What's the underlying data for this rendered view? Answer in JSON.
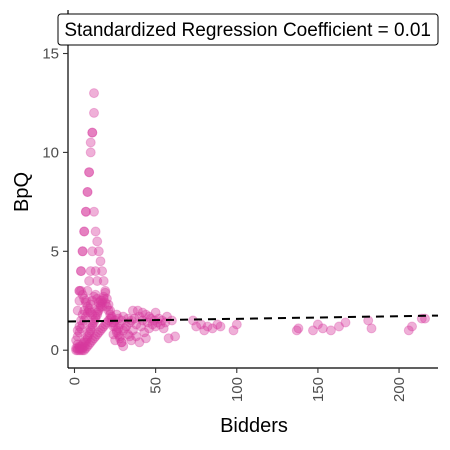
{
  "chart_data": {
    "type": "scatter",
    "title": "Standardized Regression Coefficient = 0.01",
    "xlabel": "Bidders",
    "ylabel": "BpQ",
    "xlim": [
      -4,
      224
    ],
    "ylim": [
      -0.9,
      17.2
    ],
    "x_ticks": [
      0,
      50,
      100,
      150,
      200
    ],
    "y_ticks": [
      0,
      5,
      10,
      15
    ],
    "grid": false,
    "legend": "none",
    "point_color": "#d63a9e",
    "point_opacity": 0.4,
    "trend_line": {
      "style": "dashed",
      "color": "#000000",
      "x": [
        -4,
        224
      ],
      "y": [
        1.45,
        1.75
      ]
    },
    "points": [
      [
        12,
        13
      ],
      [
        12,
        12
      ],
      [
        11,
        11
      ],
      [
        11,
        11
      ],
      [
        10,
        10.5
      ],
      [
        10,
        10
      ],
      [
        9,
        9
      ],
      [
        9,
        9
      ],
      [
        8,
        8
      ],
      [
        8,
        8
      ],
      [
        7,
        7
      ],
      [
        7,
        7
      ],
      [
        6,
        6
      ],
      [
        6,
        6
      ],
      [
        5,
        5
      ],
      [
        5,
        5
      ],
      [
        4,
        4
      ],
      [
        4,
        4
      ],
      [
        3,
        3
      ],
      [
        3,
        3
      ],
      [
        12,
        7
      ],
      [
        13,
        6
      ],
      [
        14,
        5.5
      ],
      [
        15,
        5
      ],
      [
        16,
        4.5
      ],
      [
        17,
        4
      ],
      [
        18,
        3.5
      ],
      [
        19,
        3
      ],
      [
        13,
        4
      ],
      [
        14,
        3.5
      ],
      [
        11,
        5
      ],
      [
        10,
        4
      ],
      [
        9,
        3.5
      ],
      [
        8,
        3
      ],
      [
        7,
        2.5
      ],
      [
        6,
        2
      ],
      [
        5,
        1.8
      ],
      [
        4,
        1.5
      ],
      [
        3,
        1.2
      ],
      [
        2,
        1
      ],
      [
        1,
        0.5
      ],
      [
        2,
        0.3
      ],
      [
        3,
        0.2
      ],
      [
        4,
        0.1
      ],
      [
        5,
        0
      ],
      [
        6,
        0.2
      ],
      [
        7,
        0.4
      ],
      [
        8,
        0.6
      ],
      [
        9,
        0.8
      ],
      [
        10,
        1
      ],
      [
        11,
        1.2
      ],
      [
        12,
        1.4
      ],
      [
        13,
        1.6
      ],
      [
        14,
        1.8
      ],
      [
        15,
        2
      ],
      [
        16,
        2.2
      ],
      [
        17,
        2.4
      ],
      [
        18,
        2.6
      ],
      [
        19,
        2.4
      ],
      [
        20,
        2.2
      ],
      [
        21,
        2
      ],
      [
        22,
        1.8
      ],
      [
        23,
        1.6
      ],
      [
        24,
        1.4
      ],
      [
        25,
        1.2
      ],
      [
        26,
        1
      ],
      [
        27,
        0.8
      ],
      [
        28,
        0.6
      ],
      [
        29,
        0.4
      ],
      [
        30,
        0.2
      ],
      [
        2,
        2
      ],
      [
        3,
        2.5
      ],
      [
        4,
        3
      ],
      [
        5,
        2.8
      ],
      [
        6,
        2.6
      ],
      [
        7,
        2.4
      ],
      [
        8,
        2.2
      ],
      [
        9,
        2
      ],
      [
        10,
        1.9
      ],
      [
        11,
        1.8
      ],
      [
        1,
        0
      ],
      [
        1,
        0.1
      ],
      [
        2,
        0
      ],
      [
        2,
        0.1
      ],
      [
        3,
        0
      ],
      [
        3,
        0.1
      ],
      [
        4,
        0
      ],
      [
        4,
        0.2
      ],
      [
        5,
        0.1
      ],
      [
        5,
        0.3
      ],
      [
        6,
        0
      ],
      [
        6,
        0.4
      ],
      [
        7,
        0.1
      ],
      [
        7,
        0.5
      ],
      [
        8,
        0.2
      ],
      [
        8,
        0.7
      ],
      [
        9,
        0.3
      ],
      [
        9,
        0.9
      ],
      [
        10,
        0.4
      ],
      [
        10,
        1.1
      ],
      [
        11,
        0.5
      ],
      [
        11,
        1.3
      ],
      [
        12,
        0.6
      ],
      [
        12,
        1.5
      ],
      [
        13,
        0.7
      ],
      [
        13,
        1.7
      ],
      [
        14,
        0.8
      ],
      [
        14,
        1.9
      ],
      [
        15,
        0.9
      ],
      [
        15,
        2.1
      ],
      [
        16,
        1
      ],
      [
        16,
        2.3
      ],
      [
        17,
        1.1
      ],
      [
        17,
        2.5
      ],
      [
        18,
        1.2
      ],
      [
        18,
        2.7
      ],
      [
        19,
        1.3
      ],
      [
        19,
        2.9
      ],
      [
        20,
        1.4
      ],
      [
        20,
        2.6
      ],
      [
        21,
        1.5
      ],
      [
        21,
        2.3
      ],
      [
        22,
        1.6
      ],
      [
        22,
        2
      ],
      [
        23,
        1.7
      ],
      [
        23,
        1.4
      ],
      [
        24,
        1.2
      ],
      [
        24,
        0.8
      ],
      [
        25,
        1.5
      ],
      [
        25,
        0.5
      ],
      [
        26,
        1.8
      ],
      [
        26,
        0.9
      ],
      [
        27,
        1.6
      ],
      [
        27,
        1.1
      ],
      [
        28,
        1.3
      ],
      [
        28,
        0.7
      ],
      [
        29,
        1.5
      ],
      [
        29,
        0.4
      ],
      [
        30,
        1.7
      ],
      [
        30,
        1
      ],
      [
        32,
        1.2
      ],
      [
        33,
        0.8
      ],
      [
        34,
        1.4
      ],
      [
        35,
        1.5
      ],
      [
        36,
        1
      ],
      [
        37,
        1.6
      ],
      [
        38,
        1.3
      ],
      [
        39,
        2
      ],
      [
        40,
        1.7
      ],
      [
        41,
        1.2
      ],
      [
        42,
        1.5
      ],
      [
        43,
        0.9
      ],
      [
        44,
        1.8
      ],
      [
        45,
        1.4
      ],
      [
        46,
        1.1
      ],
      [
        47,
        1.6
      ],
      [
        48,
        1.3
      ],
      [
        49,
        1.5
      ],
      [
        50,
        1.2
      ],
      [
        51,
        1.4
      ],
      [
        52,
        1.6
      ],
      [
        53,
        1.3
      ],
      [
        54,
        1.5
      ],
      [
        55,
        1.1
      ],
      [
        56,
        1.4
      ],
      [
        57,
        1.7
      ],
      [
        58,
        0.6
      ],
      [
        60,
        1.5
      ],
      [
        62,
        0.7
      ],
      [
        35,
        0.5
      ],
      [
        38,
        0.7
      ],
      [
        40,
        0.4
      ],
      [
        36,
        2
      ],
      [
        42,
        1.9
      ],
      [
        44,
        0.6
      ],
      [
        46,
        1.7
      ],
      [
        50,
        1.9
      ],
      [
        31,
        1.1
      ],
      [
        33,
        1.6
      ],
      [
        34,
        0.7
      ],
      [
        73,
        1.5
      ],
      [
        75,
        1.2
      ],
      [
        78,
        1.3
      ],
      [
        80,
        1
      ],
      [
        82,
        1.2
      ],
      [
        85,
        1.1
      ],
      [
        88,
        1.3
      ],
      [
        90,
        1.2
      ],
      [
        98,
        1
      ],
      [
        100,
        1.3
      ],
      [
        137,
        1
      ],
      [
        138,
        1.1
      ],
      [
        147,
        1
      ],
      [
        150,
        1.3
      ],
      [
        153,
        1.1
      ],
      [
        158,
        1
      ],
      [
        163,
        1.2
      ],
      [
        167,
        1.4
      ],
      [
        181,
        1.5
      ],
      [
        183,
        1.1
      ],
      [
        206,
        1
      ],
      [
        208,
        1.2
      ],
      [
        214,
        1.6
      ],
      [
        216,
        1.6
      ],
      [
        2,
        0.7
      ],
      [
        3,
        0.9
      ],
      [
        4,
        1.1
      ],
      [
        5,
        1.3
      ],
      [
        6,
        1.5
      ],
      [
        7,
        1.7
      ],
      [
        8,
        1.9
      ],
      [
        9,
        2.1
      ],
      [
        10,
        2.3
      ],
      [
        11,
        2.5
      ],
      [
        12,
        2.7
      ],
      [
        13,
        2.8
      ],
      [
        14,
        2.6
      ],
      [
        15,
        2.4
      ],
      [
        16,
        2.5
      ],
      [
        17,
        2.2
      ]
    ]
  }
}
